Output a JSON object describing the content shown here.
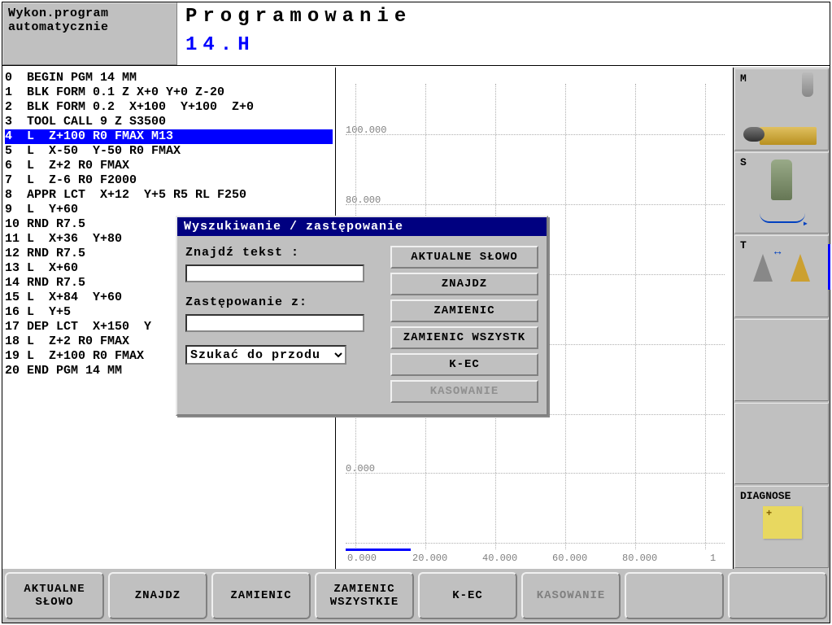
{
  "header": {
    "mode_line1": "Wykon.program",
    "mode_line2": "automatycznie",
    "title": "Programowanie",
    "file": "14.H"
  },
  "code": {
    "selected_index": 4,
    "lines": [
      "0  BEGIN PGM 14 MM",
      "1  BLK FORM 0.1 Z X+0 Y+0 Z-20",
      "2  BLK FORM 0.2  X+100  Y+100  Z+0",
      "3  TOOL CALL 9 Z S3500",
      "4  L  Z+100 R0 FMAX M13",
      "5  L  X-50  Y-50 R0 FMAX",
      "6  L  Z+2 R0 FMAX",
      "7  L  Z-6 R0 F2000",
      "8  APPR LCT  X+12  Y+5 R5 RL F250",
      "9  L  Y+60",
      "10 RND R7.5",
      "11 L  X+36  Y+80",
      "12 RND R7.5",
      "13 L  X+60",
      "14 RND R7.5",
      "15 L  X+84  Y+60",
      "16 L  Y+5",
      "17 DEP LCT  X+150  Y",
      "18 L  Z+2 R0 FMAX",
      "19 L  Z+100 R0 FMAX",
      "20 END PGM 14 MM"
    ]
  },
  "graph": {
    "y_ticks": [
      "100.000",
      "80.000",
      "0.000"
    ],
    "x_ticks": [
      "0.000",
      "20.000",
      "40.000",
      "60.000",
      "80.000",
      "1"
    ]
  },
  "rail": {
    "m": "M",
    "s": "S",
    "t": "T",
    "diag": "DIAGNOSE"
  },
  "dialog": {
    "title": "Wyszukiwanie / zastępowanie",
    "find_label": "Znajdź tekst :",
    "find_value": "",
    "replace_label": "Zastępowanie z:",
    "replace_value": "",
    "direction": "Szukać do przodu",
    "buttons": {
      "current": "AKTUALNE SŁOWO",
      "find": "ZNAJDZ",
      "replace": "ZAMIENIC",
      "replace_all": "ZAMIENIC WSZYSTK",
      "end": "K-EC",
      "delete": "KASOWANIE"
    }
  },
  "softkeys": {
    "k1": "AKTUALNE\nSŁOWO",
    "k2": "ZNAJDZ",
    "k3": "ZAMIENIC",
    "k4": "ZAMIENIC\nWSZYSTKIE",
    "k5": "K-EC",
    "k6": "KASOWANIE",
    "k7": "",
    "k8": ""
  }
}
